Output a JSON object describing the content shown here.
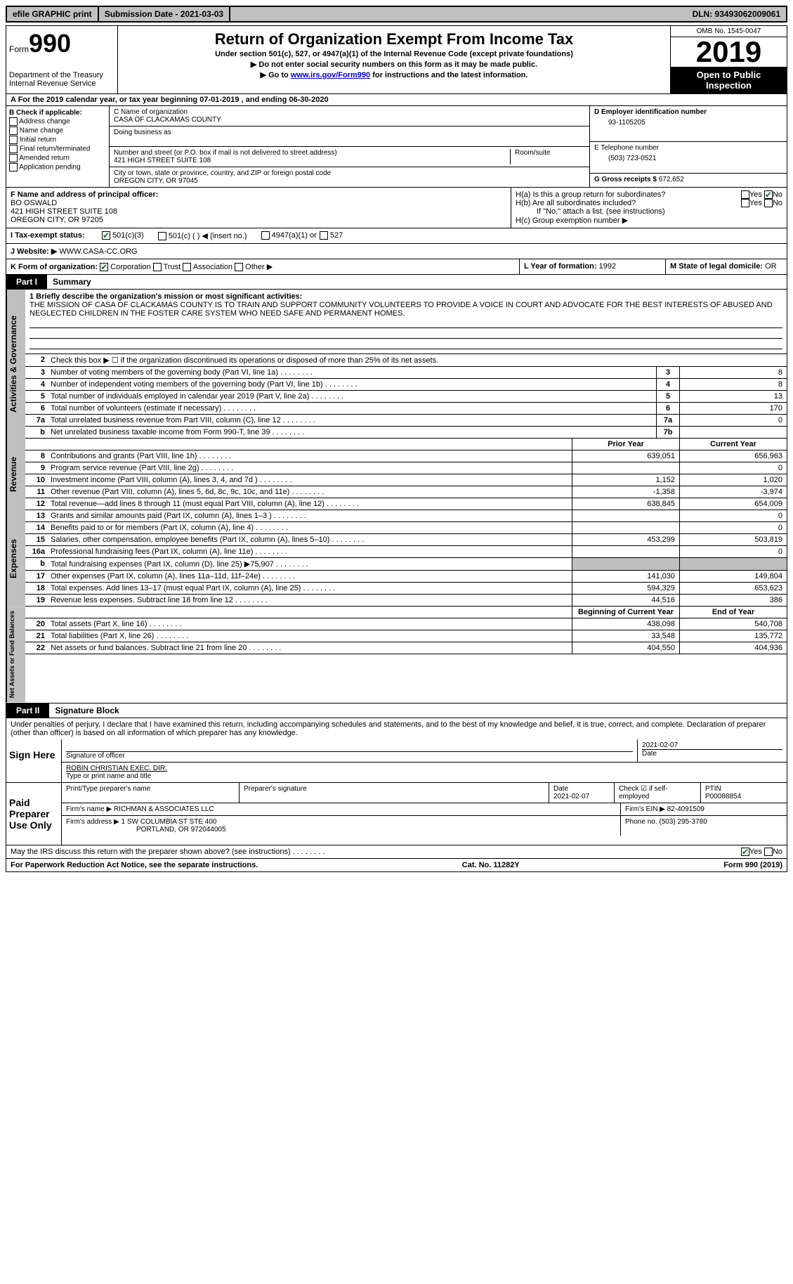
{
  "topbar": {
    "efile": "efile GRAPHIC print",
    "submission": "Submission Date - 2021-03-03",
    "dln": "DLN: 93493062009061"
  },
  "header": {
    "form_word": "Form",
    "form_no": "990",
    "dept": "Department of the Treasury\nInternal Revenue Service",
    "title": "Return of Organization Exempt From Income Tax",
    "subtitle": "Under section 501(c), 527, or 4947(a)(1) of the Internal Revenue Code (except private foundations)",
    "note1": "▶ Do not enter social security numbers on this form as it may be made public.",
    "note2_pre": "▶ Go to ",
    "note2_link": "www.irs.gov/Form990",
    "note2_post": " for instructions and the latest information.",
    "omb": "OMB No. 1545-0047",
    "year": "2019",
    "inspection": "Open to Public Inspection"
  },
  "period": "A For the 2019 calendar year, or tax year beginning 07-01-2019   , and ending 06-30-2020",
  "section_b": {
    "heading": "B Check if applicable:",
    "items": [
      "Address change",
      "Name change",
      "Initial return",
      "Final return/terminated",
      "Amended return",
      "Application pending"
    ]
  },
  "section_c": {
    "name_label": "C Name of organization",
    "name": "CASA OF CLACKAMAS COUNTY",
    "dba_label": "Doing business as",
    "street_label": "Number and street (or P.O. box if mail is not delivered to street address)",
    "street": "421 HIGH STREET SUITE 108",
    "room_label": "Room/suite",
    "city_label": "City or town, state or province, country, and ZIP or foreign postal code",
    "city": "OREGON CITY, OR  97045"
  },
  "section_d": {
    "label": "D Employer identification number",
    "value": "93-1105205"
  },
  "section_e": {
    "label": "E Telephone number",
    "value": "(503) 723-0521"
  },
  "section_g": {
    "label": "G Gross receipts $",
    "value": "672,652"
  },
  "section_f": {
    "label": "F Name and address of principal officer:",
    "name": "BO OSWALD",
    "street": "421 HIGH STREET SUITE 108",
    "city": "OREGON CITY, OR  97205"
  },
  "section_h": {
    "a": "H(a)  Is this a group return for subordinates?",
    "b": "H(b)  Are all subordinates included?",
    "note": "If \"No,\" attach a list. (see instructions)",
    "c": "H(c)  Group exemption number ▶"
  },
  "section_i": {
    "label": "I    Tax-exempt status:",
    "opts": [
      "501(c)(3)",
      "501(c) (  ) ◀ (insert no.)",
      "4947(a)(1) or",
      "527"
    ]
  },
  "section_j": {
    "label": "J   Website: ▶",
    "value": "WWW.CASA-CC.ORG"
  },
  "section_k": {
    "label": "K Form of organization:",
    "opts": [
      "Corporation",
      "Trust",
      "Association",
      "Other ▶"
    ]
  },
  "section_l": {
    "label": "L Year of formation:",
    "value": "1992"
  },
  "section_m": {
    "label": "M State of legal domicile:",
    "value": "OR"
  },
  "part1": {
    "tab": "Part I",
    "title": "Summary"
  },
  "mission": {
    "label": "1   Briefly describe the organization's mission or most significant activities:",
    "text": "THE MISSION OF CASA OF CLACKAMAS COUNTY IS TO TRAIN AND SUPPORT COMMUNITY VOLUNTEERS TO PROVIDE A VOICE IN COURT AND ADVOCATE FOR THE BEST INTERESTS OF ABUSED AND NEGLECTED CHILDREN IN THE FOSTER CARE SYSTEM WHO NEED SAFE AND PERMANENT HOMES."
  },
  "line2": "Check this box ▶ ☐  if the organization discontinued its operations or disposed of more than 25% of its net assets.",
  "gov_lines": [
    {
      "n": "3",
      "d": "Number of voting members of the governing body (Part VI, line 1a)",
      "b": "3",
      "v": "8"
    },
    {
      "n": "4",
      "d": "Number of independent voting members of the governing body (Part VI, line 1b)",
      "b": "4",
      "v": "8"
    },
    {
      "n": "5",
      "d": "Total number of individuals employed in calendar year 2019 (Part V, line 2a)",
      "b": "5",
      "v": "13"
    },
    {
      "n": "6",
      "d": "Total number of volunteers (estimate if necessary)",
      "b": "6",
      "v": "170"
    },
    {
      "n": "7a",
      "d": "Total unrelated business revenue from Part VIII, column (C), line 12",
      "b": "7a",
      "v": "0"
    },
    {
      "n": "b",
      "d": "Net unrelated business taxable income from Form 990-T, line 39",
      "b": "7b",
      "v": ""
    }
  ],
  "col_hdrs": {
    "prior": "Prior Year",
    "current": "Current Year"
  },
  "revenue_lines": [
    {
      "n": "8",
      "d": "Contributions and grants (Part VIII, line 1h)",
      "p": "639,051",
      "c": "656,963"
    },
    {
      "n": "9",
      "d": "Program service revenue (Part VIII, line 2g)",
      "p": "",
      "c": "0"
    },
    {
      "n": "10",
      "d": "Investment income (Part VIII, column (A), lines 3, 4, and 7d )",
      "p": "1,152",
      "c": "1,020"
    },
    {
      "n": "11",
      "d": "Other revenue (Part VIII, column (A), lines 5, 6d, 8c, 9c, 10c, and 11e)",
      "p": "-1,358",
      "c": "-3,974"
    },
    {
      "n": "12",
      "d": "Total revenue—add lines 8 through 11 (must equal Part VIII, column (A), line 12)",
      "p": "638,845",
      "c": "654,009"
    }
  ],
  "expense_lines": [
    {
      "n": "13",
      "d": "Grants and similar amounts paid (Part IX, column (A), lines 1–3 )",
      "p": "",
      "c": "0"
    },
    {
      "n": "14",
      "d": "Benefits paid to or for members (Part IX, column (A), line 4)",
      "p": "",
      "c": "0"
    },
    {
      "n": "15",
      "d": "Salaries, other compensation, employee benefits (Part IX, column (A), lines 5–10)",
      "p": "453,299",
      "c": "503,819"
    },
    {
      "n": "16a",
      "d": "Professional fundraising fees (Part IX, column (A), line 11e)",
      "p": "",
      "c": "0"
    },
    {
      "n": "b",
      "d": "Total fundraising expenses (Part IX, column (D), line 25) ▶75,907",
      "p": "shade",
      "c": "shade"
    },
    {
      "n": "17",
      "d": "Other expenses (Part IX, column (A), lines 11a–11d, 11f–24e)",
      "p": "141,030",
      "c": "149,804"
    },
    {
      "n": "18",
      "d": "Total expenses. Add lines 13–17 (must equal Part IX, column (A), line 25)",
      "p": "594,329",
      "c": "653,623"
    },
    {
      "n": "19",
      "d": "Revenue less expenses. Subtract line 18 from line 12",
      "p": "44,516",
      "c": "386"
    }
  ],
  "na_hdrs": {
    "begin": "Beginning of Current Year",
    "end": "End of Year"
  },
  "na_lines": [
    {
      "n": "20",
      "d": "Total assets (Part X, line 16)",
      "p": "438,098",
      "c": "540,708"
    },
    {
      "n": "21",
      "d": "Total liabilities (Part X, line 26)",
      "p": "33,548",
      "c": "135,772"
    },
    {
      "n": "22",
      "d": "Net assets or fund balances. Subtract line 21 from line 20",
      "p": "404,550",
      "c": "404,936"
    }
  ],
  "side_labels": {
    "gov": "Activities & Governance",
    "rev": "Revenue",
    "exp": "Expenses",
    "na": "Net Assets or Fund Balances"
  },
  "part2": {
    "tab": "Part II",
    "title": "Signature Block"
  },
  "perjury": "Under penalties of perjury, I declare that I have examined this return, including accompanying schedules and statements, and to the best of my knowledge and belief, it is true, correct, and complete. Declaration of preparer (other than officer) is based on all information of which preparer has any knowledge.",
  "sign": {
    "left": "Sign Here",
    "date": "2021-02-07",
    "sig_label": "Signature of officer",
    "date_label": "Date",
    "name": "ROBIN CHRISTIAN  EXEC. DIR.",
    "name_label": "Type or print name and title"
  },
  "preparer": {
    "left": "Paid Preparer Use Only",
    "h1": "Print/Type preparer's name",
    "h2": "Preparer's signature",
    "h3": "Date",
    "date": "2021-02-07",
    "check_label": "Check ☑ if self-employed",
    "ptin_label": "PTIN",
    "ptin": "P00088854",
    "firm_label": "Firm's name    ▶",
    "firm": "RICHMAN & ASSOCIATES LLC",
    "ein_label": "Firm's EIN ▶",
    "ein": "82-4091509",
    "addr_label": "Firm's address ▶",
    "addr1": "1 SW COLUMBIA ST STE 400",
    "addr2": "PORTLAND, OR  972044005",
    "phone_label": "Phone no.",
    "phone": "(503) 295-3780"
  },
  "discuss": "May the IRS discuss this return with the preparer shown above? (see instructions)",
  "footer": {
    "left": "For Paperwork Reduction Act Notice, see the separate instructions.",
    "mid": "Cat. No. 11282Y",
    "right": "Form 990 (2019)"
  },
  "yes": "Yes",
  "no": "No"
}
